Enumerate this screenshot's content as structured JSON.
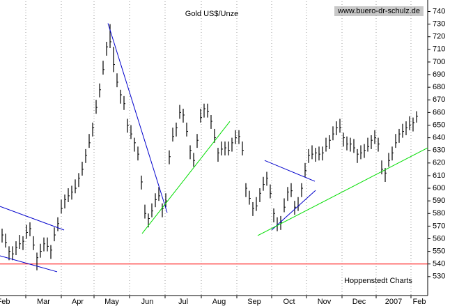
{
  "chart_data": {
    "type": "ohlc",
    "title": "Gold US$/Unze",
    "source": "www.buero-dr-schulz.de",
    "credit": "Hoppenstedt Charts",
    "color": "#000000",
    "xlim": [
      -0.6,
      122.2
    ],
    "xticks": [
      {
        "value": -6,
        "label": "Feb"
      },
      {
        "value": 6.8,
        "label": "Mar"
      },
      {
        "value": 17,
        "label": "Apr"
      },
      {
        "value": 26.4,
        "label": "May"
      },
      {
        "value": 36.6,
        "label": "Jun"
      },
      {
        "value": 46.8,
        "label": "Jul"
      },
      {
        "value": 57.2,
        "label": "Aug"
      },
      {
        "value": 67.4,
        "label": "Sep"
      },
      {
        "value": 77.4,
        "label": "Oct"
      },
      {
        "value": 87.4,
        "label": "Nov"
      },
      {
        "value": 97.6,
        "label": "Dec"
      },
      {
        "value": 107.4,
        "label": "2007"
      },
      {
        "value": 117.4,
        "label": "Feb"
      }
    ],
    "ylim": [
      515,
      748
    ],
    "yticks": [
      530,
      540,
      550,
      560,
      570,
      580,
      590,
      600,
      610,
      620,
      630,
      640,
      650,
      660,
      670,
      680,
      690,
      700,
      710,
      720,
      730,
      740
    ],
    "grid": true,
    "high": [
      568,
      564,
      554,
      554,
      558,
      563,
      562,
      571,
      573,
      562,
      549,
      556,
      561,
      561,
      555,
      569,
      577,
      591,
      595,
      600,
      602,
      607,
      612,
      621,
      631,
      643,
      652,
      670,
      683,
      701,
      716,
      730,
      712,
      691,
      678,
      673,
      655,
      650,
      640,
      633,
      610,
      587,
      580,
      588,
      596,
      601,
      588,
      596,
      630,
      648,
      652,
      666,
      663,
      652,
      634,
      628,
      643,
      663,
      667,
      667,
      658,
      647,
      632,
      637,
      637,
      637,
      640,
      646,
      646,
      637,
      604,
      598,
      589,
      593,
      600,
      609,
      613,
      603,
      584,
      577,
      578,
      592,
      601,
      604,
      590,
      593,
      604,
      620,
      631,
      634,
      632,
      633,
      633,
      640,
      642,
      649,
      653,
      655,
      644,
      641,
      640,
      639,
      631,
      634,
      635,
      640,
      642,
      646,
      640,
      622,
      616,
      628,
      633,
      643,
      647,
      651,
      653,
      657,
      656,
      661
    ],
    "low": [
      557,
      553,
      543,
      543,
      547,
      552,
      551,
      560,
      562,
      551,
      535,
      545,
      550,
      550,
      544,
      558,
      566,
      580,
      584,
      589,
      591,
      596,
      601,
      610,
      620,
      632,
      641,
      659,
      672,
      690,
      705,
      711,
      692,
      680,
      667,
      662,
      644,
      639,
      629,
      622,
      599,
      576,
      569,
      577,
      585,
      590,
      577,
      585,
      619,
      637,
      641,
      655,
      652,
      641,
      623,
      617,
      632,
      652,
      656,
      656,
      647,
      636,
      621,
      626,
      626,
      626,
      629,
      635,
      635,
      626,
      593,
      587,
      578,
      582,
      589,
      598,
      602,
      592,
      573,
      566,
      567,
      581,
      590,
      593,
      579,
      582,
      593,
      609,
      620,
      623,
      621,
      622,
      622,
      629,
      631,
      638,
      642,
      644,
      633,
      630,
      629,
      628,
      620,
      623,
      624,
      629,
      631,
      635,
      629,
      611,
      605,
      617,
      622,
      632,
      636,
      640,
      642,
      646,
      645,
      652
    ],
    "close": [
      563,
      557,
      550,
      548,
      553,
      556,
      558,
      565,
      568,
      555,
      545,
      550,
      556,
      554,
      551,
      563,
      572,
      584,
      591,
      594,
      597,
      600,
      608,
      615,
      626,
      636,
      648,
      664,
      678,
      694,
      712,
      716,
      698,
      684,
      674,
      667,
      650,
      643,
      636,
      627,
      605,
      580,
      576,
      582,
      591,
      594,
      584,
      590,
      625,
      641,
      648,
      660,
      658,
      645,
      630,
      622,
      638,
      656,
      663,
      661,
      653,
      640,
      628,
      631,
      632,
      630,
      636,
      640,
      641,
      630,
      600,
      592,
      584,
      586,
      596,
      603,
      608,
      596,
      580,
      571,
      573,
      585,
      597,
      598,
      585,
      586,
      600,
      614,
      626,
      627,
      628,
      627,
      628,
      633,
      638,
      643,
      648,
      648,
      640,
      635,
      635,
      632,
      627,
      628,
      630,
      633,
      638,
      640,
      635,
      615,
      612,
      622,
      628,
      636,
      643,
      645,
      648,
      650,
      652,
      657
    ],
    "hline": {
      "value": 540,
      "color": "#ff0000"
    },
    "trendlines": [
      {
        "color": "#0000cc",
        "points": [
          [
            -0.6,
            585.6
          ],
          [
            17.8,
            566.9
          ]
        ]
      },
      {
        "color": "#0000cc",
        "points": [
          [
            -0.6,
            546.5
          ],
          [
            15.8,
            533.8
          ]
        ]
      },
      {
        "color": "#0000cc",
        "points": [
          [
            30.4,
            730.6
          ],
          [
            47.4,
            580.7
          ]
        ]
      },
      {
        "color": "#00dd00",
        "points": [
          [
            40.2,
            564.1
          ],
          [
            65.4,
            652.9
          ]
        ]
      },
      {
        "color": "#0000cc",
        "points": [
          [
            75.4,
            622
          ],
          [
            89.8,
            605.5
          ]
        ]
      },
      {
        "color": "#0000cc",
        "points": [
          [
            77.4,
            566.9
          ],
          [
            90,
            598.3
          ]
        ]
      },
      {
        "color": "#00dd00",
        "points": [
          [
            73.4,
            562.5
          ],
          [
            122.2,
            632
          ]
        ]
      }
    ]
  }
}
